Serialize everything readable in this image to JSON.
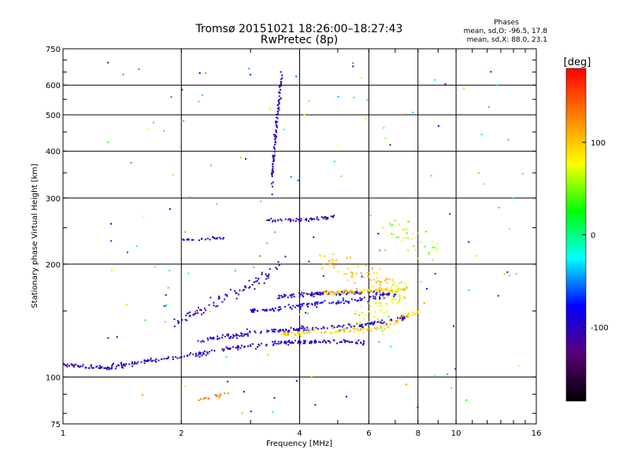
{
  "chart_data": {
    "type": "scatter",
    "title": "Tromsø 20151021 18:26:00–18:27:43",
    "subtitle": "RwPretec (8p)",
    "xlabel": "Frequency [MHz]",
    "ylabel": "Stationary phase Virtual Height [km]",
    "x_scale": "log",
    "y_scale": "log",
    "xlim": [
      1,
      16
    ],
    "ylim": [
      75,
      750
    ],
    "x_ticks": [
      1,
      2,
      4,
      6,
      8,
      10,
      16
    ],
    "y_ticks": [
      75,
      100,
      200,
      300,
      400,
      500,
      600,
      750
    ],
    "grid": true,
    "stats": {
      "heading": "Phases",
      "line1": "mean, sd,O: -96.5, 17.8",
      "line2": "mean, sd,X:  88.0, 23.1"
    },
    "colorbar": {
      "label": "[deg]",
      "range": [
        -180,
        180
      ],
      "ticks": [
        100,
        0,
        -100
      ],
      "colors": [
        "#000000",
        "#5a0078",
        "#0000ff",
        "#00ffff",
        "#00ff00",
        "#ffff00",
        "#ff8000",
        "#ff0000"
      ]
    },
    "traces": [
      {
        "f": [
          1.0,
          1.3,
          1.6,
          2.0,
          2.5,
          3.0,
          3.5,
          4.0,
          4.5,
          5.0,
          5.5,
          6.0
        ],
        "h": [
          108,
          106,
          110,
          113,
          118,
          121,
          123,
          124,
          124,
          124,
          124,
          123
        ],
        "phase": -100,
        "n": 260,
        "spread": 0.012
      },
      {
        "f": [
          2.2,
          2.6,
          3.0,
          3.5,
          4.0,
          4.5,
          5.0,
          5.5,
          6.0,
          6.5,
          7.0,
          7.5
        ],
        "h": [
          124,
          128,
          131,
          133,
          134,
          135,
          136,
          137,
          138,
          140,
          142,
          145
        ],
        "phase": -95,
        "n": 170,
        "spread": 0.012
      },
      {
        "f": [
          3.0,
          3.5,
          4.0,
          4.5,
          5.0,
          5.5,
          6.0,
          6.5,
          7.0
        ],
        "h": [
          150,
          152,
          155,
          157,
          158,
          160,
          162,
          164,
          166
        ],
        "phase": -90,
        "n": 120,
        "spread": 0.013
      },
      {
        "f": [
          3.5,
          4.0,
          4.5,
          5.0,
          5.5,
          6.0,
          6.5,
          7.0
        ],
        "h": [
          163,
          166,
          167,
          167,
          168,
          168,
          167,
          168
        ],
        "phase": -100,
        "n": 110,
        "spread": 0.012
      },
      {
        "f": [
          3.6,
          4.0,
          4.5,
          5.0,
          5.5,
          6.0,
          6.5,
          7.0,
          7.5,
          8.0
        ],
        "h": [
          130,
          131,
          132,
          133,
          133,
          134,
          136,
          140,
          146,
          150
        ],
        "phase": 95,
        "n": 110,
        "spread": 0.014
      },
      {
        "f": [
          4.6,
          5.0,
          5.5,
          6.0,
          6.5,
          7.0,
          7.5
        ],
        "h": [
          168,
          168,
          169,
          170,
          171,
          170,
          172
        ],
        "phase": 100,
        "n": 90,
        "spread": 0.012
      },
      {
        "f": [
          1.9,
          2.2,
          2.5,
          2.8,
          3.1,
          3.4,
          3.7
        ],
        "h": [
          140,
          150,
          160,
          170,
          178,
          190,
          205
        ],
        "phase": -105,
        "n": 80,
        "spread": 0.035
      },
      {
        "f": [
          3.4,
          3.45,
          3.5,
          3.55,
          3.6
        ],
        "h": [
          330,
          410,
          480,
          560,
          640
        ],
        "phase": -105,
        "n": 90,
        "spread": 0.06
      },
      {
        "f": [
          3.3,
          3.6,
          4.0,
          4.5,
          5.0
        ],
        "h": [
          262,
          262,
          262,
          265,
          268
        ],
        "phase": -100,
        "n": 55,
        "spread": 0.008
      },
      {
        "f": [
          4.5,
          5.0,
          5.5,
          6.0,
          6.5,
          7.0
        ],
        "h": [
          200,
          195,
          190,
          185,
          180,
          175
        ],
        "phase": 100,
        "n": 70,
        "spread": 0.07
      },
      {
        "f": [
          6.5,
          7.0,
          7.5,
          8.0,
          8.5,
          9.0
        ],
        "h": [
          260,
          250,
          240,
          230,
          220,
          210
        ],
        "phase": 60,
        "n": 40,
        "spread": 0.08
      },
      {
        "f": [
          2.0,
          2.2,
          2.4,
          2.6
        ],
        "h": [
          232,
          233,
          234,
          236
        ],
        "phase": -100,
        "n": 25,
        "spread": 0.01
      },
      {
        "f": [
          2.2,
          2.35,
          2.5,
          2.65
        ],
        "h": [
          87,
          88,
          89,
          90
        ],
        "phase": 130,
        "n": 18,
        "spread": 0.01
      },
      {
        "f": [
          5.5,
          6.0,
          6.5,
          7.0,
          7.5
        ],
        "h": [
          145,
          150,
          155,
          165,
          175
        ],
        "phase": 70,
        "n": 60,
        "spread": 0.07
      }
    ],
    "scatter_noise": {
      "n": 150,
      "xlim": [
        1.3,
        15.0
      ],
      "ylim": [
        80,
        700
      ],
      "phase_range": [
        -130,
        150
      ]
    }
  }
}
